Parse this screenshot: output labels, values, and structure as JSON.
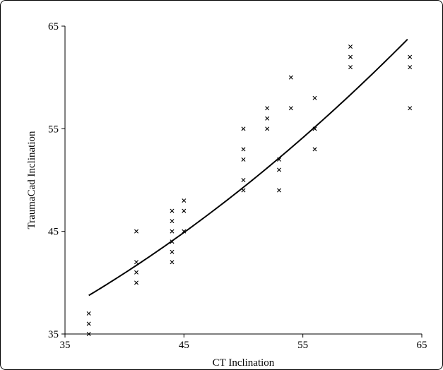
{
  "chart_data": {
    "type": "scatter",
    "title": "",
    "xlabel": "CT Inclination",
    "ylabel": "TraumaCad Inclination",
    "xlim": [
      35,
      65
    ],
    "ylim": [
      35,
      65
    ],
    "xticks": [
      35,
      45,
      55,
      65
    ],
    "yticks": [
      35,
      45,
      55,
      65
    ],
    "marker": "x",
    "grid": false,
    "legend": false,
    "colors": {
      "points": "#000000",
      "fit": "#000000",
      "axes": "#000000"
    },
    "points": [
      [
        37,
        35
      ],
      [
        37,
        36
      ],
      [
        37,
        37
      ],
      [
        41,
        40
      ],
      [
        41,
        41
      ],
      [
        41,
        42
      ],
      [
        41,
        45
      ],
      [
        44,
        42
      ],
      [
        44,
        43
      ],
      [
        44,
        44
      ],
      [
        44,
        45
      ],
      [
        44,
        46
      ],
      [
        44,
        47
      ],
      [
        45,
        45
      ],
      [
        45,
        47
      ],
      [
        45,
        48
      ],
      [
        50,
        49
      ],
      [
        50,
        50
      ],
      [
        50,
        52
      ],
      [
        50,
        53
      ],
      [
        50,
        55
      ],
      [
        52,
        55
      ],
      [
        52,
        56
      ],
      [
        52,
        57
      ],
      [
        53,
        49
      ],
      [
        53,
        51
      ],
      [
        53,
        52
      ],
      [
        54,
        57
      ],
      [
        54,
        60
      ],
      [
        56,
        53
      ],
      [
        56,
        55
      ],
      [
        56,
        58
      ],
      [
        59,
        61
      ],
      [
        59,
        62
      ],
      [
        59,
        63
      ],
      [
        64,
        57
      ],
      [
        64,
        61
      ],
      [
        64,
        62
      ]
    ],
    "fit_curve": {
      "type": "quadratic",
      "x": [
        37,
        41,
        45,
        50,
        55,
        59,
        63.8
      ],
      "y": [
        38.7,
        41.7,
        45.0,
        49.3,
        54.1,
        58.2,
        63.8
      ]
    }
  }
}
